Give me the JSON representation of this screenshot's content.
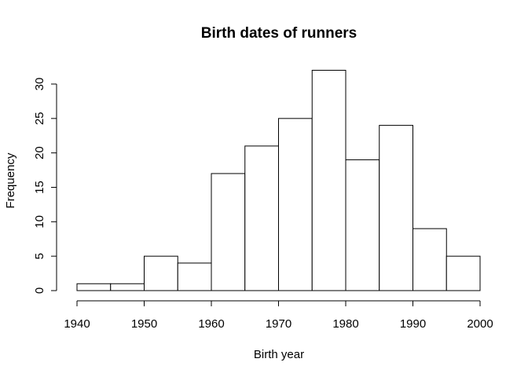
{
  "chart_data": {
    "type": "bar",
    "title": "Birth dates of runners",
    "xlabel": "Birth year",
    "ylabel": "Frequency",
    "bins": [
      {
        "from": 1940,
        "to": 1945,
        "count": 1
      },
      {
        "from": 1945,
        "to": 1950,
        "count": 1
      },
      {
        "from": 1950,
        "to": 1955,
        "count": 5
      },
      {
        "from": 1955,
        "to": 1960,
        "count": 4
      },
      {
        "from": 1960,
        "to": 1965,
        "count": 17
      },
      {
        "from": 1965,
        "to": 1970,
        "count": 21
      },
      {
        "from": 1970,
        "to": 1975,
        "count": 25
      },
      {
        "from": 1975,
        "to": 1980,
        "count": 32
      },
      {
        "from": 1980,
        "to": 1985,
        "count": 19
      },
      {
        "from": 1985,
        "to": 1990,
        "count": 24
      },
      {
        "from": 1990,
        "to": 1995,
        "count": 9
      },
      {
        "from": 1995,
        "to": 2000,
        "count": 5
      }
    ],
    "xlim": [
      1940,
      2000
    ],
    "ylim": [
      0,
      30
    ],
    "xticks": [
      "1940",
      "1950",
      "1960",
      "1970",
      "1980",
      "1990",
      "2000"
    ],
    "yticks": [
      "0",
      "5",
      "10",
      "15",
      "20",
      "25",
      "30"
    ],
    "grid": false,
    "colors": {
      "bar_fill": "#ffffff",
      "bar_stroke": "#000000"
    }
  }
}
